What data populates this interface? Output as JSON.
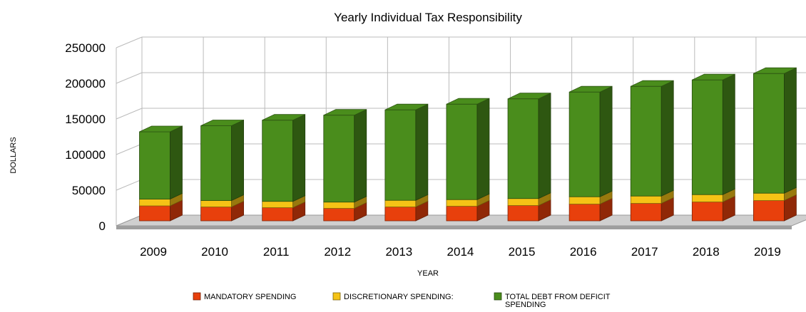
{
  "chart_data": {
    "type": "bar",
    "stacked": true,
    "three_d": true,
    "title": "Yearly Individual Tax Responsibility",
    "xlabel": "YEAR",
    "ylabel": "DOLLARS",
    "ylim": [
      0,
      250000
    ],
    "yticks": [
      "250000",
      "200000",
      "150000",
      "100000",
      "50000",
      "0"
    ],
    "categories": [
      "2009",
      "2010",
      "2011",
      "2012",
      "2013",
      "2014",
      "2015",
      "2016",
      "2017",
      "2018",
      "2019"
    ],
    "series": [
      {
        "name": "MANDATORY SPENDING",
        "color": "#e8400c",
        "values": [
          21000,
          19500,
          18500,
          17500,
          19500,
          20500,
          21500,
          23500,
          24500,
          26500,
          28500
        ]
      },
      {
        "name": "DISCRETIONARY SPENDING:",
        "color": "#f5c316",
        "values": [
          9500,
          9000,
          8800,
          8800,
          9300,
          9300,
          9800,
          10300,
          10300,
          10300,
          10300
        ]
      },
      {
        "name": "TOTAL DEBT FROM DEFICIT SPENDING",
        "color": "#4a8d1c",
        "values": [
          94500,
          105000,
          114000,
          122000,
          127000,
          134000,
          140000,
          147000,
          154000,
          161000,
          168000
        ]
      }
    ],
    "grid": true,
    "legend_position": "bottom"
  }
}
